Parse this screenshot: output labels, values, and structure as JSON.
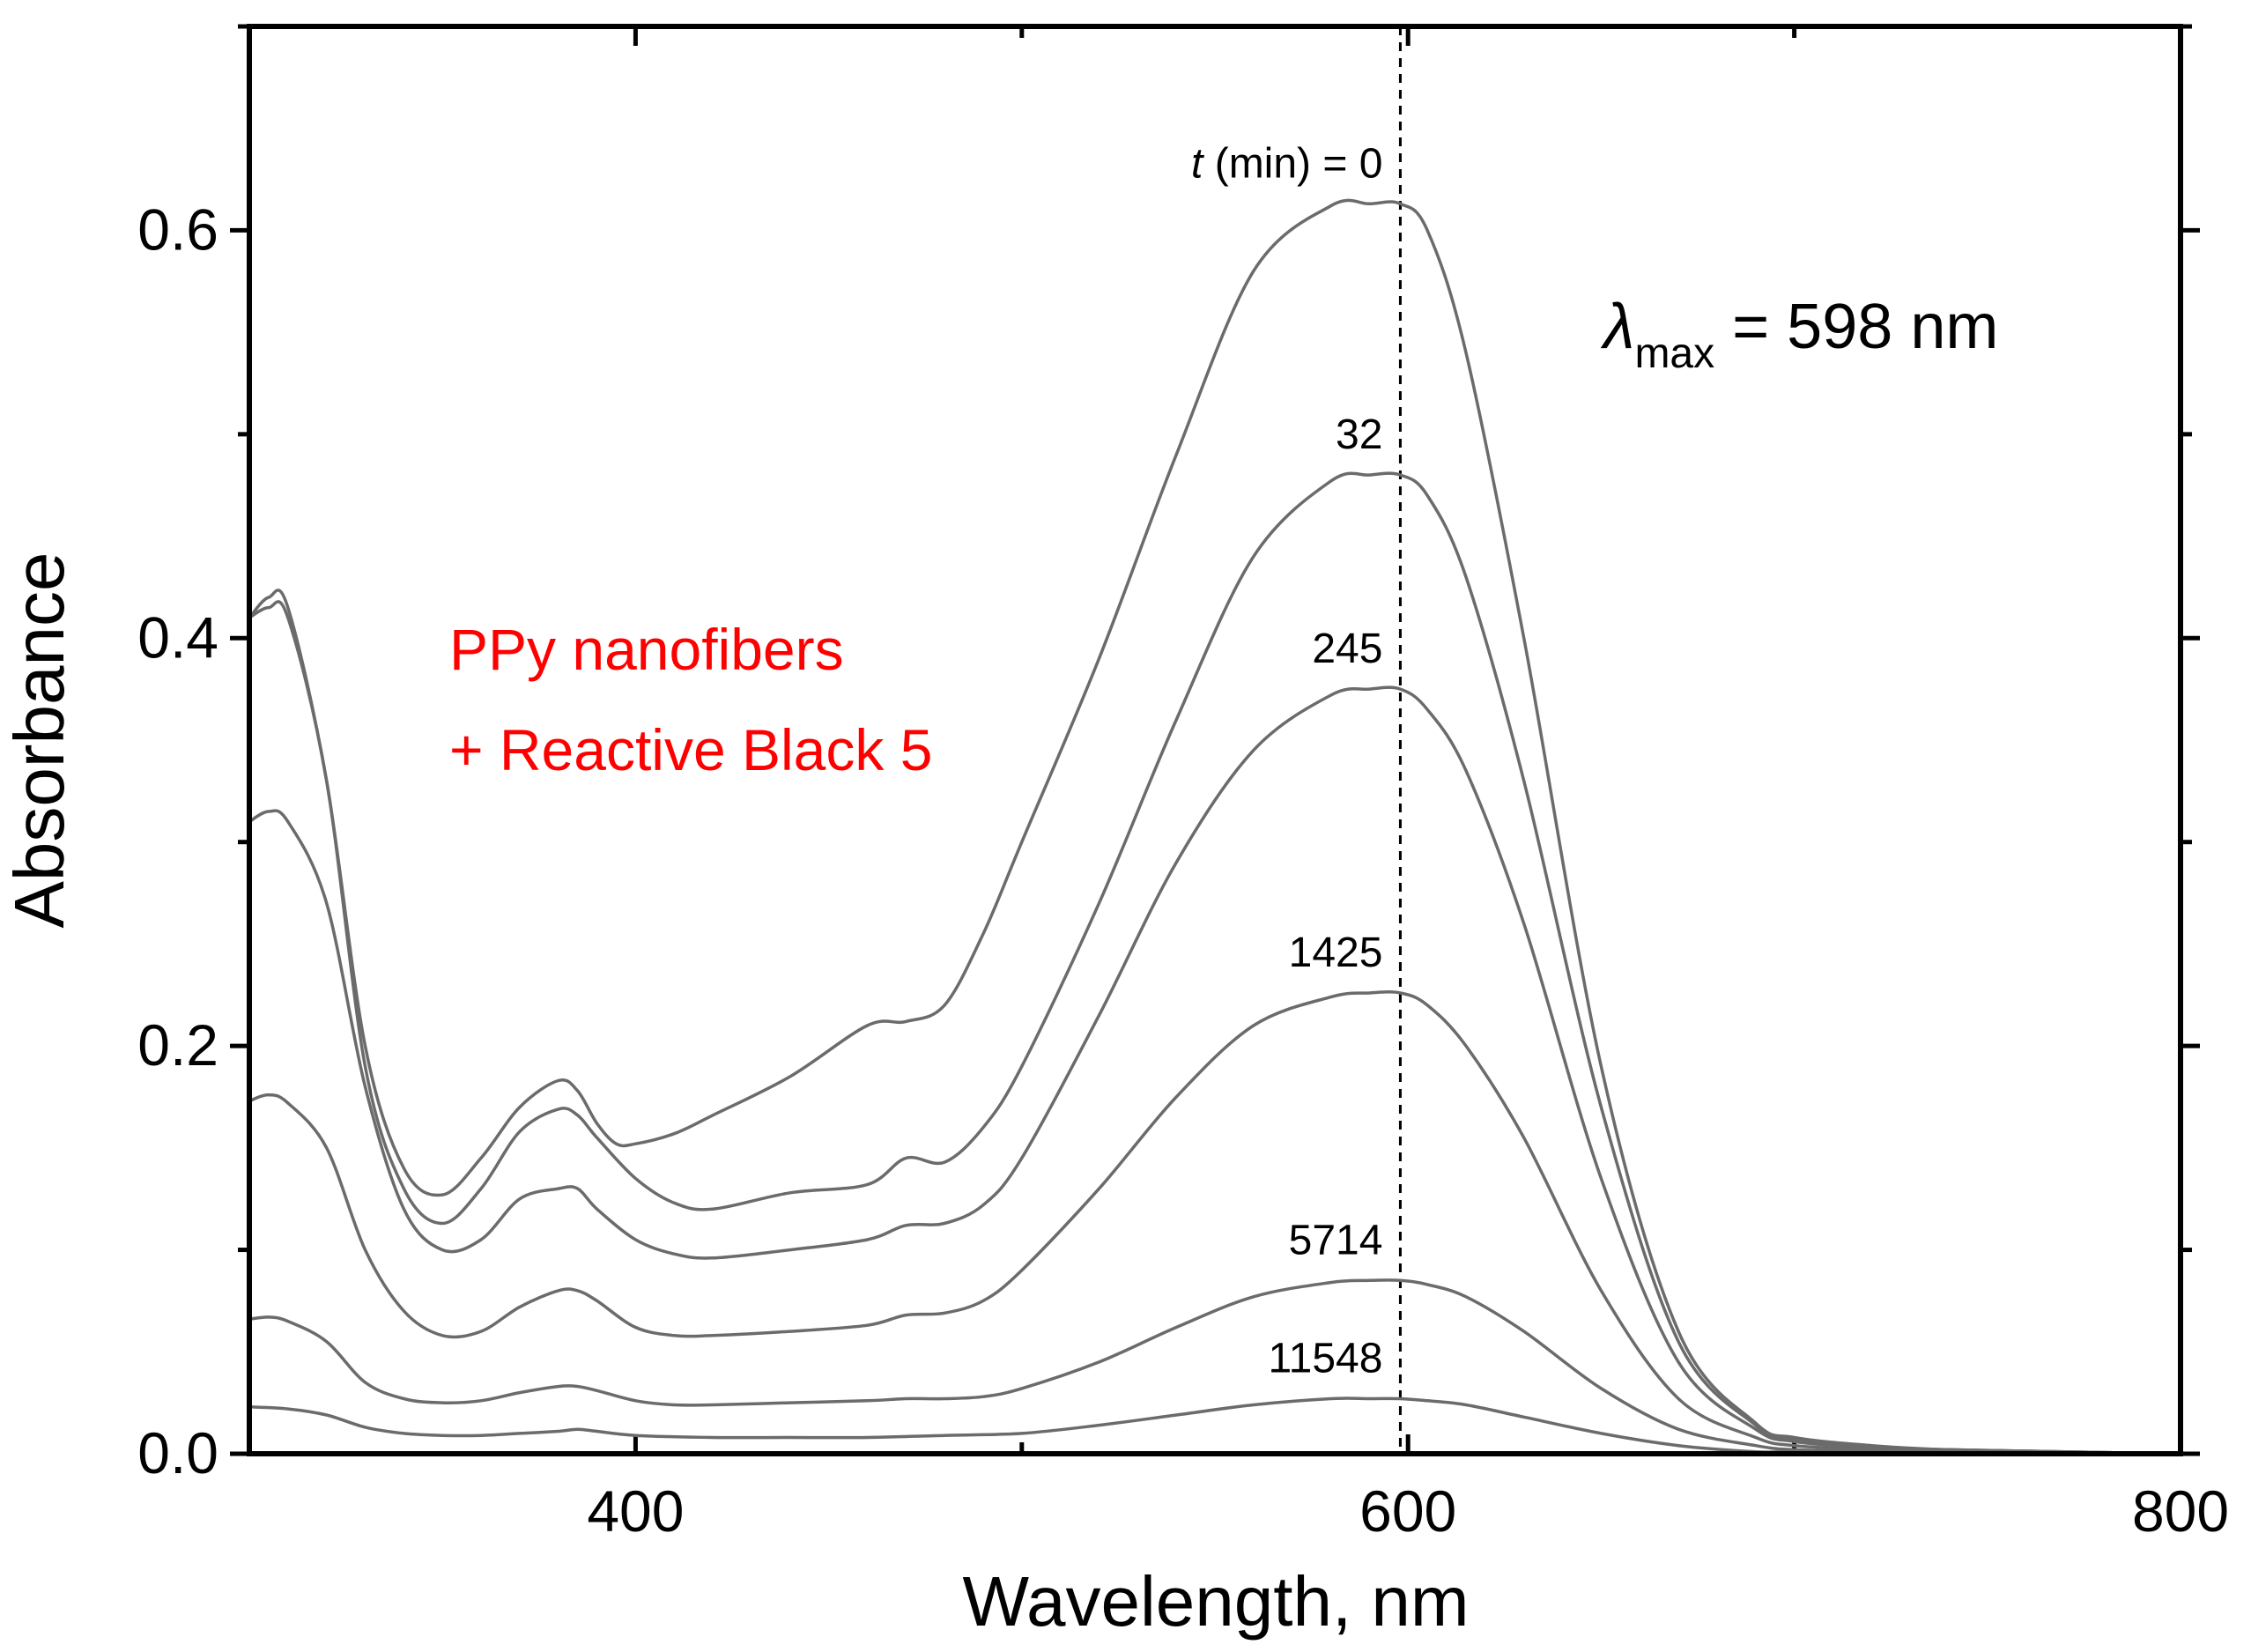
{
  "chart_data": {
    "type": "line",
    "title": "",
    "xlabel": "Wavelength, nm",
    "ylabel": "Absorbance",
    "xlim": [
      300,
      800
    ],
    "ylim": [
      0.0,
      0.7
    ],
    "x_ticks": [
      {
        "value": 400,
        "label": "400"
      },
      {
        "value": 600,
        "label": "600"
      },
      {
        "value": 800,
        "label": "800"
      }
    ],
    "y_ticks": [
      {
        "value": 0.0,
        "label": "0.0"
      },
      {
        "value": 0.2,
        "label": "0.2"
      },
      {
        "value": 0.4,
        "label": "0.4"
      },
      {
        "value": 0.6,
        "label": "0.6"
      }
    ],
    "x_minor_ticks": [
      300,
      500,
      700
    ],
    "y_minor_ticks": [
      0.1,
      0.3,
      0.5,
      0.7
    ],
    "reference_line": {
      "x": 598
    },
    "annotation_lambda": {
      "symbol": "λ",
      "subscript": "max",
      "text": " = 598 nm"
    },
    "legend_text": [
      "PPy nanofibers",
      "+ Reactive Black 5"
    ],
    "legend_color": "#ff0000",
    "curve_color": "#6b6b6b",
    "series": [
      {
        "name": "0",
        "label_prefix": "t",
        "label": " (min) = 0",
        "x": [
          300,
          305,
          310,
          320,
          330,
          340,
          350,
          360,
          370,
          380,
          385,
          390,
          395,
          400,
          410,
          420,
          440,
          460,
          470,
          480,
          490,
          500,
          520,
          540,
          560,
          580,
          590,
          598,
          605,
          615,
          630,
          650,
          670,
          690,
          700,
          720,
          740,
          770,
          800
        ],
        "y": [
          0.41,
          0.42,
          0.415,
          0.33,
          0.2,
          0.14,
          0.127,
          0.145,
          0.17,
          0.183,
          0.178,
          0.162,
          0.152,
          0.152,
          0.157,
          0.166,
          0.185,
          0.21,
          0.212,
          0.22,
          0.255,
          0.3,
          0.39,
          0.49,
          0.58,
          0.612,
          0.613,
          0.613,
          0.6,
          0.54,
          0.4,
          0.19,
          0.06,
          0.015,
          0.008,
          0.004,
          0.002,
          0.001,
          0.0
        ]
      },
      {
        "name": "32",
        "label": "32",
        "x": [
          300,
          305,
          310,
          320,
          330,
          340,
          350,
          360,
          370,
          380,
          385,
          390,
          400,
          410,
          420,
          440,
          460,
          470,
          480,
          490,
          500,
          520,
          540,
          560,
          580,
          590,
          598,
          605,
          615,
          630,
          650,
          670,
          690,
          700,
          720,
          740,
          770,
          800
        ],
        "y": [
          0.41,
          0.415,
          0.41,
          0.33,
          0.19,
          0.13,
          0.113,
          0.13,
          0.158,
          0.169,
          0.166,
          0.155,
          0.135,
          0.123,
          0.12,
          0.128,
          0.132,
          0.145,
          0.143,
          0.16,
          0.19,
          0.27,
          0.36,
          0.44,
          0.477,
          0.48,
          0.48,
          0.47,
          0.43,
          0.33,
          0.17,
          0.055,
          0.014,
          0.007,
          0.003,
          0.002,
          0.001,
          0.0
        ]
      },
      {
        "name": "245",
        "label": "245",
        "x": [
          300,
          305,
          310,
          320,
          330,
          340,
          350,
          360,
          370,
          380,
          385,
          390,
          400,
          410,
          420,
          440,
          460,
          470,
          480,
          490,
          500,
          520,
          540,
          560,
          580,
          590,
          598,
          605,
          615,
          630,
          650,
          670,
          690,
          700,
          720,
          740,
          770,
          800
        ],
        "y": [
          0.31,
          0.315,
          0.31,
          0.27,
          0.18,
          0.12,
          0.1,
          0.105,
          0.125,
          0.13,
          0.13,
          0.12,
          0.105,
          0.098,
          0.096,
          0.1,
          0.105,
          0.112,
          0.113,
          0.122,
          0.145,
          0.215,
          0.29,
          0.345,
          0.372,
          0.375,
          0.375,
          0.365,
          0.335,
          0.26,
          0.135,
          0.045,
          0.012,
          0.006,
          0.003,
          0.002,
          0.001,
          0.0
        ]
      },
      {
        "name": "1425",
        "label": "1425",
        "x": [
          300,
          305,
          310,
          320,
          330,
          340,
          350,
          360,
          370,
          380,
          385,
          390,
          400,
          410,
          420,
          440,
          460,
          470,
          480,
          490,
          500,
          520,
          540,
          560,
          580,
          590,
          598,
          605,
          615,
          630,
          650,
          670,
          690,
          700,
          720,
          740,
          770,
          800
        ],
        "y": [
          0.173,
          0.176,
          0.172,
          0.15,
          0.1,
          0.07,
          0.058,
          0.06,
          0.072,
          0.08,
          0.08,
          0.075,
          0.062,
          0.058,
          0.058,
          0.06,
          0.063,
          0.068,
          0.069,
          0.075,
          0.09,
          0.13,
          0.175,
          0.21,
          0.224,
          0.226,
          0.226,
          0.22,
          0.2,
          0.155,
          0.08,
          0.027,
          0.008,
          0.004,
          0.002,
          0.001,
          0.0,
          0.0
        ]
      },
      {
        "name": "5714",
        "label": "5714",
        "x": [
          300,
          305,
          310,
          320,
          330,
          340,
          350,
          360,
          370,
          380,
          385,
          390,
          400,
          410,
          420,
          440,
          460,
          470,
          480,
          490,
          500,
          520,
          540,
          560,
          580,
          590,
          598,
          605,
          615,
          630,
          650,
          670,
          690,
          700,
          720,
          740,
          770,
          800
        ],
        "y": [
          0.066,
          0.067,
          0.065,
          0.055,
          0.035,
          0.027,
          0.025,
          0.026,
          0.03,
          0.033,
          0.033,
          0.031,
          0.026,
          0.024,
          0.024,
          0.025,
          0.026,
          0.027,
          0.027,
          0.028,
          0.032,
          0.045,
          0.062,
          0.077,
          0.084,
          0.085,
          0.085,
          0.083,
          0.077,
          0.06,
          0.032,
          0.012,
          0.004,
          0.002,
          0.001,
          0.0,
          0.0,
          0.0
        ]
      },
      {
        "name": "11548",
        "label": "11548",
        "x": [
          300,
          310,
          320,
          330,
          340,
          350,
          360,
          370,
          380,
          385,
          390,
          400,
          420,
          440,
          460,
          480,
          500,
          520,
          540,
          560,
          580,
          590,
          598,
          605,
          615,
          630,
          650,
          670,
          690,
          700,
          720,
          740,
          770,
          800
        ],
        "y": [
          0.023,
          0.022,
          0.019,
          0.013,
          0.01,
          0.009,
          0.009,
          0.01,
          0.011,
          0.012,
          0.011,
          0.009,
          0.008,
          0.008,
          0.008,
          0.009,
          0.01,
          0.014,
          0.019,
          0.024,
          0.027,
          0.027,
          0.027,
          0.026,
          0.024,
          0.018,
          0.01,
          0.004,
          0.001,
          0.001,
          0.0,
          0.0,
          0.0,
          0.0
        ]
      }
    ]
  }
}
